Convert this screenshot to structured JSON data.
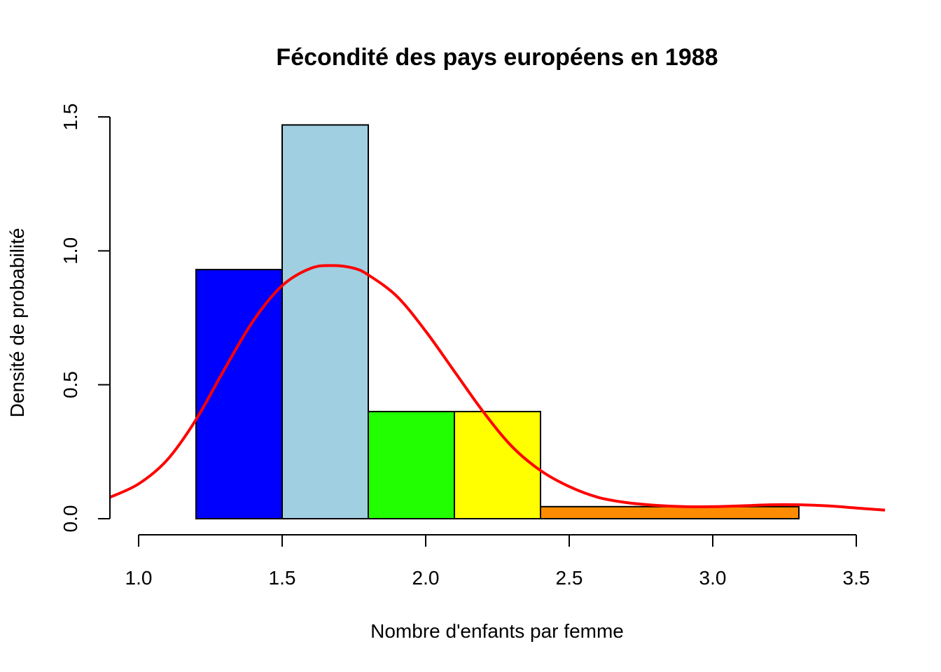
{
  "chart_data": {
    "type": "bar",
    "title": "Fécondité des pays européens en 1988",
    "xlabel": "Nombre d'enfants par femme",
    "ylabel": "Densité de probabilité",
    "xlim": [
      0.9,
      3.6
    ],
    "ylim": [
      0.0,
      1.5
    ],
    "x_ticks": [
      "1.0",
      "1.5",
      "2.0",
      "2.5",
      "3.0",
      "3.5"
    ],
    "y_ticks": [
      "0.0",
      "0.5",
      "1.0",
      "1.5"
    ],
    "bins": [
      {
        "from": 1.2,
        "to": 1.5,
        "density": 0.93,
        "color": "#0000ff"
      },
      {
        "from": 1.5,
        "to": 1.8,
        "density": 1.47,
        "color": "#a0cfe1"
      },
      {
        "from": 1.8,
        "to": 2.1,
        "density": 0.4,
        "color": "#22ff00"
      },
      {
        "from": 2.1,
        "to": 2.4,
        "density": 0.4,
        "color": "#ffff00"
      },
      {
        "from": 2.4,
        "to": 3.3,
        "density": 0.045,
        "color": "#ff8c00"
      }
    ],
    "density_curve": {
      "color": "#ff0000",
      "x": [
        0.9,
        1.0,
        1.1,
        1.2,
        1.3,
        1.4,
        1.5,
        1.6,
        1.68,
        1.75,
        1.8,
        1.9,
        2.0,
        2.1,
        2.2,
        2.3,
        2.4,
        2.5,
        2.6,
        2.7,
        2.8,
        2.9,
        3.0,
        3.1,
        3.2,
        3.3,
        3.4,
        3.5,
        3.6
      ],
      "y": [
        0.08,
        0.13,
        0.22,
        0.37,
        0.56,
        0.74,
        0.87,
        0.935,
        0.945,
        0.935,
        0.91,
        0.83,
        0.7,
        0.55,
        0.4,
        0.27,
        0.18,
        0.12,
        0.08,
        0.06,
        0.05,
        0.045,
        0.045,
        0.048,
        0.052,
        0.052,
        0.048,
        0.04,
        0.032
      ]
    }
  }
}
